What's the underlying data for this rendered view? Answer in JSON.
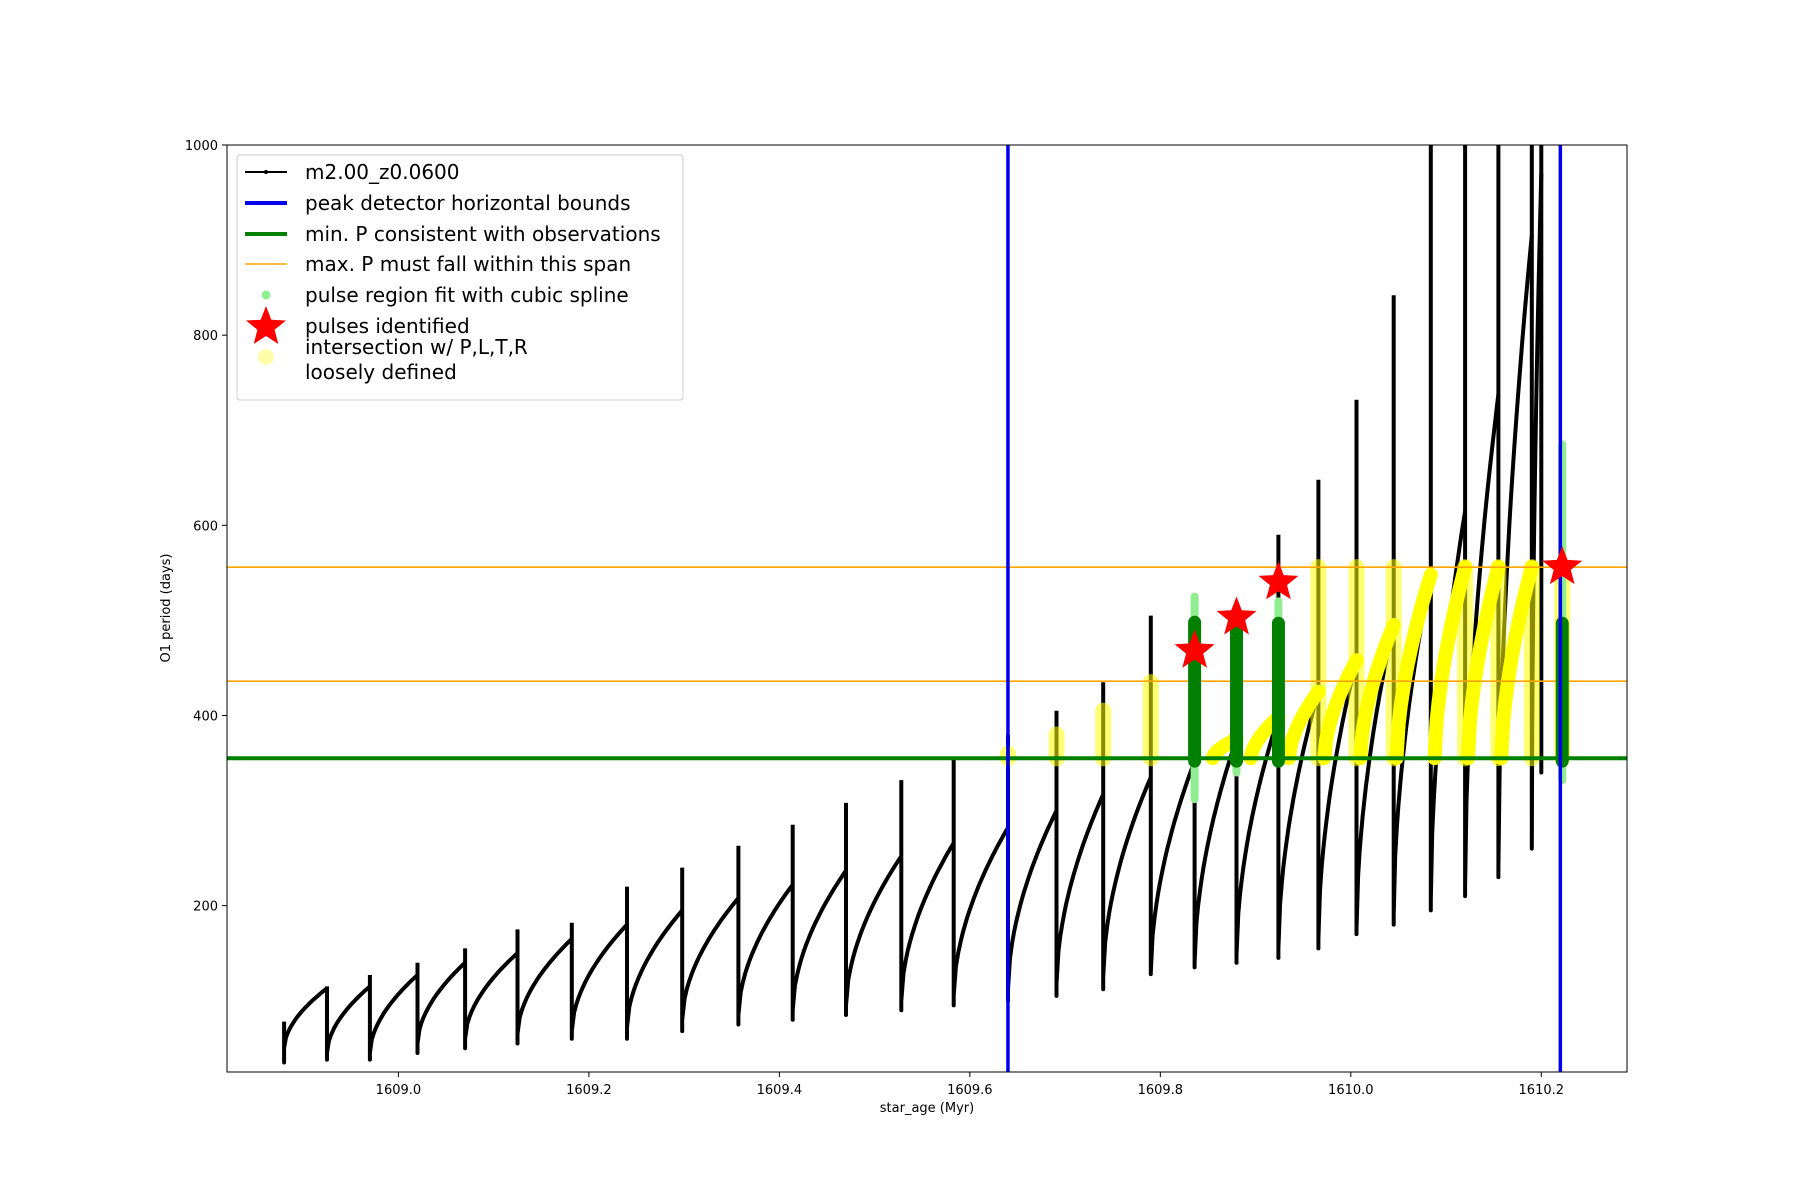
{
  "chart_data": {
    "type": "line",
    "title": "",
    "xlabel": "star_age (Myr)",
    "ylabel": "O1 period (days)",
    "xlim": [
      1608.82,
      1610.29
    ],
    "ylim": [
      25,
      1000
    ],
    "xticks": [
      1609.0,
      1609.2,
      1609.4,
      1609.6,
      1609.8,
      1610.0,
      1610.2
    ],
    "xtick_labels": [
      "1609.0",
      "1609.2",
      "1609.4",
      "1609.6",
      "1609.8",
      "1610.0",
      "1610.2"
    ],
    "yticks": [
      200,
      400,
      600,
      800,
      1000
    ],
    "ytick_labels": [
      "200",
      "400",
      "600",
      "800",
      "1000"
    ],
    "grid": false,
    "legend_position": "top-left",
    "legend": [
      {
        "label": "m2.00_z0.0600",
        "marker": "line-dot",
        "color": "#000000"
      },
      {
        "label": "peak detector horizontal bounds",
        "marker": "line",
        "color": "#0000ee"
      },
      {
        "label": "min. P consistent with observations",
        "marker": "line",
        "color": "#008000"
      },
      {
        "label": "max. P must fall within this span",
        "marker": "line",
        "color": "#ffa500"
      },
      {
        "label": "pulse region fit with cubic spline",
        "marker": "dot",
        "color": "#90ee90"
      },
      {
        "label": "pulses identified",
        "marker": "star",
        "color": "#ff0000"
      },
      {
        "label": "intersection w/ P,L,T,R",
        "label2": "loosely defined",
        "marker": "dot",
        "color": "#ffffaa"
      }
    ],
    "vlines": [
      {
        "x": 1609.64,
        "color": "#0000ee"
      },
      {
        "x": 1610.22,
        "color": "#0000ee"
      }
    ],
    "hlines": [
      {
        "y": 355,
        "color": "#008000"
      },
      {
        "y": 556,
        "color": "#ffa500"
      },
      {
        "y": 436,
        "color": "#ffa500"
      }
    ],
    "pulses": [
      {
        "start": 1608.88,
        "end": 1608.925,
        "p_start": 50,
        "p_end": 113,
        "spike": 78,
        "dip": 35
      },
      {
        "start": 1608.925,
        "end": 1608.97,
        "p_start": 45,
        "p_end": 115,
        "spike": 115,
        "dip": 38
      },
      {
        "start": 1608.97,
        "end": 1609.02,
        "p_start": 45,
        "p_end": 127,
        "spike": 127,
        "dip": 38
      },
      {
        "start": 1609.02,
        "end": 1609.07,
        "p_start": 55,
        "p_end": 140,
        "spike": 140,
        "dip": 45
      },
      {
        "start": 1609.07,
        "end": 1609.125,
        "p_start": 60,
        "p_end": 150,
        "spike": 155,
        "dip": 50
      },
      {
        "start": 1609.125,
        "end": 1609.182,
        "p_start": 65,
        "p_end": 165,
        "spike": 175,
        "dip": 55
      },
      {
        "start": 1609.182,
        "end": 1609.24,
        "p_start": 68,
        "p_end": 180,
        "spike": 182,
        "dip": 60
      },
      {
        "start": 1609.24,
        "end": 1609.298,
        "p_start": 72,
        "p_end": 195,
        "spike": 220,
        "dip": 60
      },
      {
        "start": 1609.298,
        "end": 1609.357,
        "p_start": 80,
        "p_end": 208,
        "spike": 240,
        "dip": 68
      },
      {
        "start": 1609.357,
        "end": 1609.414,
        "p_start": 85,
        "p_end": 222,
        "spike": 263,
        "dip": 75
      },
      {
        "start": 1609.414,
        "end": 1609.47,
        "p_start": 90,
        "p_end": 237,
        "spike": 285,
        "dip": 80
      },
      {
        "start": 1609.47,
        "end": 1609.528,
        "p_start": 95,
        "p_end": 252,
        "spike": 308,
        "dip": 85
      },
      {
        "start": 1609.528,
        "end": 1609.583,
        "p_start": 100,
        "p_end": 266,
        "spike": 332,
        "dip": 90
      },
      {
        "start": 1609.583,
        "end": 1609.64,
        "p_start": 105,
        "p_end": 282,
        "spike": 355,
        "dip": 95
      },
      {
        "start": 1609.64,
        "end": 1609.691,
        "p_start": 112,
        "p_end": 300,
        "spike": 380,
        "dip": 100
      },
      {
        "start": 1609.691,
        "end": 1609.74,
        "p_start": 118,
        "p_end": 317,
        "spike": 405,
        "dip": 105
      },
      {
        "start": 1609.74,
        "end": 1609.79,
        "p_start": 125,
        "p_end": 335,
        "spike": 435,
        "dip": 112
      },
      {
        "start": 1609.79,
        "end": 1609.836,
        "p_start": 130,
        "p_end": 352,
        "spike": 505,
        "dip": 128
      },
      {
        "start": 1609.836,
        "end": 1609.88,
        "p_start": 140,
        "p_end": 375,
        "spike": 500,
        "dip": 135
      },
      {
        "start": 1609.88,
        "end": 1609.924,
        "p_start": 148,
        "p_end": 398,
        "spike": 495,
        "dip": 140
      },
      {
        "start": 1609.924,
        "end": 1609.966,
        "p_start": 155,
        "p_end": 425,
        "spike": 590,
        "dip": 145
      },
      {
        "start": 1609.966,
        "end": 1610.006,
        "p_start": 165,
        "p_end": 458,
        "spike": 648,
        "dip": 155
      },
      {
        "start": 1610.006,
        "end": 1610.045,
        "p_start": 175,
        "p_end": 495,
        "spike": 732,
        "dip": 170
      },
      {
        "start": 1610.045,
        "end": 1610.084,
        "p_start": 190,
        "p_end": 548,
        "spike": 842,
        "dip": 180
      },
      {
        "start": 1610.084,
        "end": 1610.12,
        "p_start": 205,
        "p_end": 615,
        "spike": 1000,
        "dip": 195
      },
      {
        "start": 1610.12,
        "end": 1610.155,
        "p_start": 220,
        "p_end": 738,
        "spike": 1000,
        "dip": 210
      },
      {
        "start": 1610.155,
        "end": 1610.19,
        "p_start": 240,
        "p_end": 905,
        "spike": 1000,
        "dip": 230
      },
      {
        "start": 1610.19,
        "end": 1610.2,
        "p_start": 260,
        "p_end": 970,
        "spike": 1000,
        "dip": 260
      },
      {
        "start": 1610.2,
        "end": 1610.2,
        "p_start": 340,
        "p_end": 1000,
        "spike": 1000,
        "dip": 340
      }
    ],
    "spline_regions": [
      {
        "x": 1609.836,
        "y_min": 312,
        "y_max": 525
      },
      {
        "x": 1609.88,
        "y_min": 340,
        "y_max": 510
      },
      {
        "x": 1609.924,
        "y_min": 352,
        "y_max": 520
      },
      {
        "x": 1610.222,
        "y_min": 332,
        "y_max": 685
      }
    ],
    "green_columns": [
      {
        "x": 1609.836,
        "y_min": 352,
        "y_max": 498
      },
      {
        "x": 1609.88,
        "y_min": 352,
        "y_max": 497
      },
      {
        "x": 1609.924,
        "y_min": 352,
        "y_max": 497
      },
      {
        "x": 1610.222,
        "y_min": 352,
        "y_max": 497
      }
    ],
    "identified_pulses": [
      {
        "x": 1609.836,
        "y": 468
      },
      {
        "x": 1609.88,
        "y": 503
      },
      {
        "x": 1609.924,
        "y": 540
      },
      {
        "x": 1610.222,
        "y": 556
      }
    ],
    "intersection_columns": [
      {
        "x": 1609.64,
        "y_min": 355,
        "y_max": 360
      },
      {
        "x": 1609.691,
        "y_min": 355,
        "y_max": 380
      },
      {
        "x": 1609.74,
        "y_min": 355,
        "y_max": 405
      },
      {
        "x": 1609.79,
        "y_min": 355,
        "y_max": 435
      },
      {
        "x": 1609.966,
        "y_min": 355,
        "y_max": 556
      },
      {
        "x": 1610.006,
        "y_min": 355,
        "y_max": 556
      },
      {
        "x": 1610.045,
        "y_min": 355,
        "y_max": 556
      },
      {
        "x": 1610.12,
        "y_min": 355,
        "y_max": 556
      },
      {
        "x": 1610.155,
        "y_min": 355,
        "y_max": 556
      },
      {
        "x": 1610.19,
        "y_min": 355,
        "y_max": 556
      },
      {
        "x": 1610.222,
        "y_min": 355,
        "y_max": 556
      }
    ],
    "intersection_tracks": [
      {
        "start": 1609.855,
        "end": 1609.88,
        "y_start": 355,
        "y_end": 375
      },
      {
        "start": 1609.895,
        "end": 1609.924,
        "y_start": 355,
        "y_end": 398
      },
      {
        "start": 1609.935,
        "end": 1609.966,
        "y_start": 355,
        "y_end": 425
      },
      {
        "start": 1609.972,
        "end": 1610.006,
        "y_start": 355,
        "y_end": 458
      },
      {
        "start": 1610.01,
        "end": 1610.045,
        "y_start": 355,
        "y_end": 495
      },
      {
        "start": 1610.048,
        "end": 1610.084,
        "y_start": 355,
        "y_end": 548
      },
      {
        "start": 1610.088,
        "end": 1610.12,
        "y_start": 355,
        "y_end": 556
      },
      {
        "start": 1610.123,
        "end": 1610.155,
        "y_start": 355,
        "y_end": 556
      },
      {
        "start": 1610.158,
        "end": 1610.19,
        "y_start": 355,
        "y_end": 556
      }
    ]
  }
}
